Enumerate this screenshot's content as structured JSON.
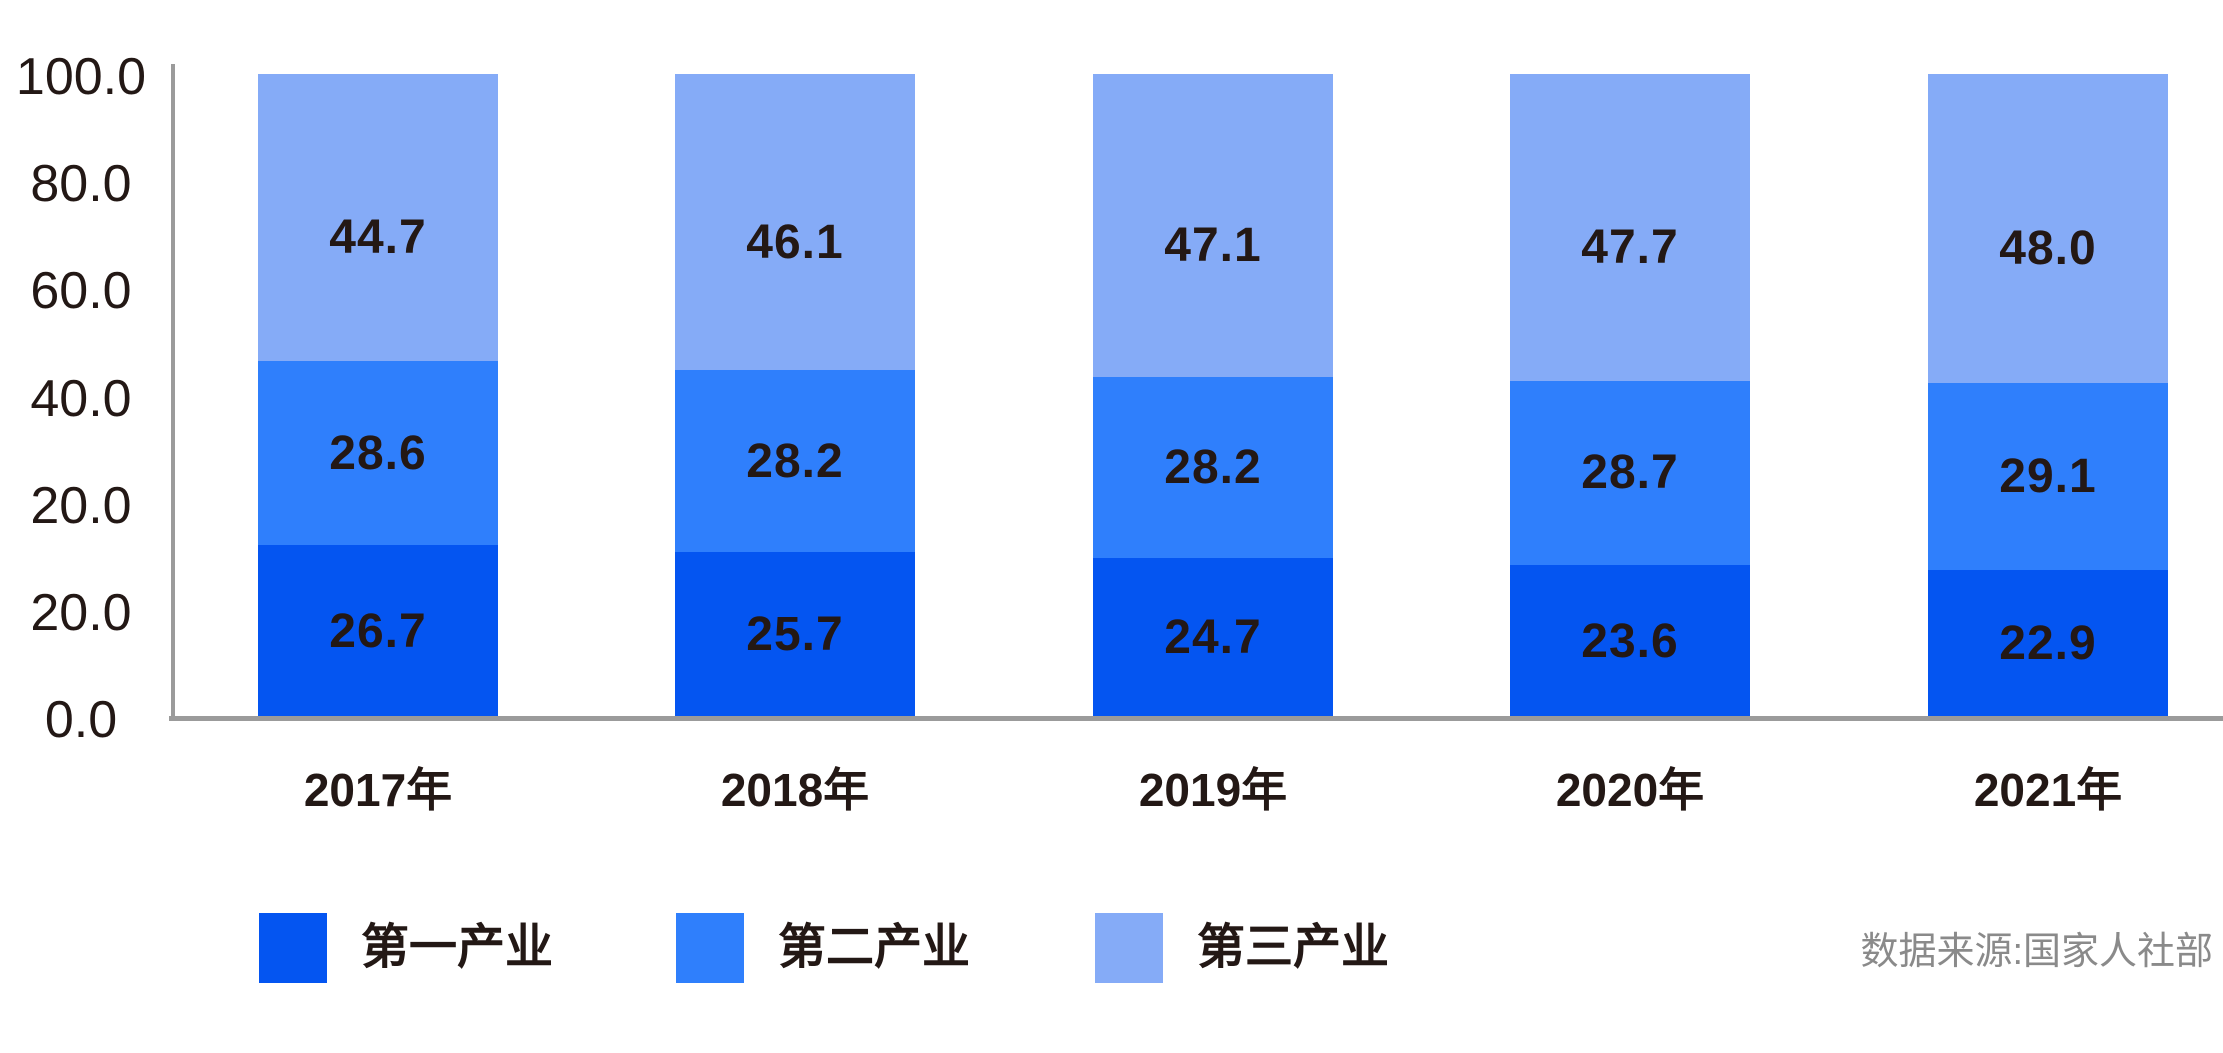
{
  "chart_data": {
    "type": "bar",
    "stacked": true,
    "categories": [
      "2017年",
      "2018年",
      "2019年",
      "2020年",
      "2021年"
    ],
    "series": [
      {
        "name": "第一产业",
        "color": "#0455F1",
        "values": [
          26.7,
          25.7,
          24.7,
          23.6,
          22.9
        ]
      },
      {
        "name": "第二产业",
        "color": "#2F7FFC",
        "values": [
          28.6,
          28.2,
          28.2,
          28.7,
          29.1
        ]
      },
      {
        "name": "第三产业",
        "color": "#85ABF7",
        "values": [
          44.7,
          46.1,
          47.1,
          47.7,
          48.0
        ]
      }
    ],
    "ytick_labels": [
      "100.0",
      "80.0",
      "60.0",
      "40.0",
      "20.0",
      "20.0",
      "0.0"
    ],
    "ylim": [
      0,
      100
    ],
    "grid": false,
    "legend_position": "bottom",
    "value_labels": "inside-center-one-decimal"
  },
  "source_note": "数据来源:国家人社部",
  "colors": {
    "axis_line": "#9b9b9b",
    "text_dark": "#231815",
    "source_text": "#8a8a8a",
    "background": "#ffffff"
  }
}
